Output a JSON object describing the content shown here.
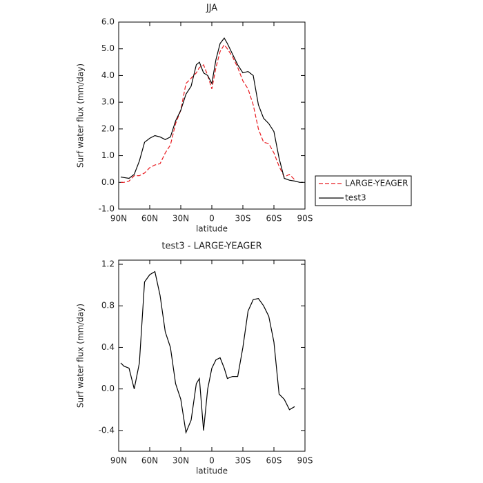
{
  "chart_data": [
    {
      "type": "line",
      "title": "JJA",
      "xlabel": "latitude",
      "ylabel": "Surf water flux (mm/day)",
      "x": [
        88,
        85,
        80,
        75,
        70,
        65,
        60,
        55,
        50,
        45,
        40,
        35,
        30,
        25,
        20,
        15,
        12,
        8,
        4,
        0,
        -4,
        -8,
        -12,
        -15,
        -20,
        -25,
        -30,
        -35,
        -40,
        -45,
        -50,
        -55,
        -60,
        -65,
        -70,
        -75,
        -80,
        -85,
        -88
      ],
      "xlim": [
        90,
        -90
      ],
      "xticks": [
        {
          "value": 90,
          "label": "90N"
        },
        {
          "value": 60,
          "label": "60N"
        },
        {
          "value": 30,
          "label": "30N"
        },
        0,
        {
          "value": -30,
          "label": "30S"
        },
        {
          "value": -60,
          "label": "60S"
        },
        {
          "value": -90,
          "label": "90S"
        }
      ],
      "ylim": [
        -1,
        6
      ],
      "yticks": [
        {
          "value": -1,
          "label": "-1.0"
        },
        {
          "value": 0,
          "label": "0.0"
        },
        {
          "value": 1,
          "label": "1.0"
        },
        {
          "value": 2,
          "label": "2.0"
        },
        {
          "value": 3,
          "label": "3.0"
        },
        {
          "value": 4,
          "label": "4.0"
        },
        {
          "value": 5,
          "label": "5.0"
        },
        {
          "value": 6,
          "label": "6.0"
        }
      ],
      "legend": "right",
      "series": [
        {
          "name": "LARGE-YEAGER",
          "color": "#e8191e",
          "line_style": "dashed",
          "values": [
            0.0,
            0.0,
            0.05,
            0.25,
            0.25,
            0.35,
            0.55,
            0.65,
            0.7,
            1.1,
            1.4,
            2.2,
            2.7,
            3.7,
            3.9,
            4.1,
            4.3,
            4.4,
            4.0,
            3.5,
            4.3,
            4.9,
            5.15,
            5.0,
            4.7,
            4.3,
            3.8,
            3.5,
            2.9,
            2.0,
            1.5,
            1.45,
            1.1,
            0.6,
            0.2,
            0.3,
            0.1,
            null,
            null
          ]
        },
        {
          "name": "test3",
          "color": "#000000",
          "line_style": "solid",
          "values": [
            0.2,
            0.18,
            0.15,
            0.3,
            0.8,
            1.5,
            1.65,
            1.75,
            1.7,
            1.6,
            1.7,
            2.3,
            2.7,
            3.3,
            3.6,
            4.4,
            4.5,
            4.1,
            4.0,
            3.7,
            4.6,
            5.2,
            5.4,
            5.2,
            4.8,
            4.4,
            4.1,
            4.15,
            4.0,
            2.9,
            2.4,
            2.2,
            1.9,
            0.9,
            0.15,
            0.08,
            0.05,
            0.0,
            0.0
          ]
        }
      ]
    },
    {
      "type": "line",
      "title": "test3 - LARGE-YEAGER",
      "xlabel": "latitude",
      "ylabel": "Surf water flux (mm/day)",
      "x": [
        88,
        85,
        80,
        75,
        70,
        65,
        60,
        55,
        50,
        45,
        40,
        35,
        30,
        25,
        20,
        15,
        12,
        8,
        4,
        0,
        -4,
        -8,
        -12,
        -15,
        -20,
        -25,
        -30,
        -35,
        -40,
        -45,
        -50,
        -55,
        -60,
        -65,
        -70,
        -75,
        -80,
        -85,
        -88
      ],
      "xlim": [
        90,
        -90
      ],
      "xticks": [
        {
          "value": 90,
          "label": "90N"
        },
        {
          "value": 60,
          "label": "60N"
        },
        {
          "value": 30,
          "label": "30N"
        },
        0,
        {
          "value": -30,
          "label": "30S"
        },
        {
          "value": -60,
          "label": "60S"
        },
        {
          "value": -90,
          "label": "90S"
        }
      ],
      "ylim": [
        -0.6,
        1.24
      ],
      "yticks": [
        -0.4,
        {
          "value": 0,
          "label": "0.0"
        },
        0.4,
        0.8,
        1.2
      ],
      "series": [
        {
          "color": "#000000",
          "line_style": "solid",
          "values": [
            0.25,
            0.22,
            0.2,
            0.0,
            0.25,
            1.03,
            1.1,
            1.13,
            0.9,
            0.55,
            0.4,
            0.05,
            -0.1,
            -0.42,
            -0.3,
            0.05,
            0.1,
            -0.4,
            0.0,
            0.2,
            0.28,
            0.3,
            0.2,
            0.1,
            0.12,
            0.12,
            0.4,
            0.75,
            0.86,
            0.87,
            0.8,
            0.7,
            0.45,
            -0.05,
            -0.1,
            -0.2,
            -0.17,
            null,
            null
          ]
        }
      ]
    }
  ]
}
